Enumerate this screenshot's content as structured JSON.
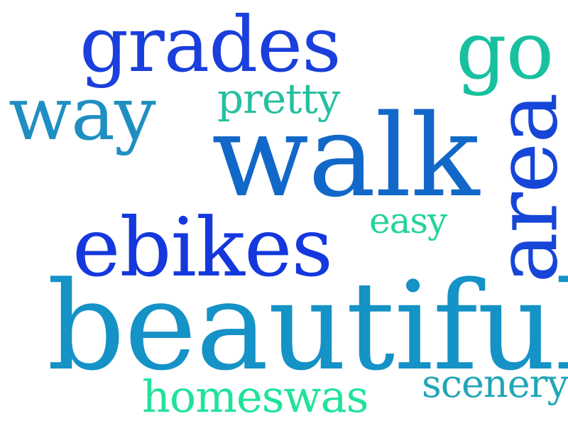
{
  "words": {
    "grades": {
      "text": "grades",
      "color": "#1a3fdc"
    },
    "go": {
      "text": "go",
      "color": "#19c0a0"
    },
    "way": {
      "text": "way",
      "color": "#1f8fc2"
    },
    "pretty": {
      "text": "pretty",
      "color": "#26bfa0"
    },
    "walk": {
      "text": "walk",
      "color": "#1268c8"
    },
    "area": {
      "text": "area",
      "color": "#1646d8"
    },
    "easy": {
      "text": "easy",
      "color": "#23d39a"
    },
    "ebikes": {
      "text": "ebikes",
      "color": "#1438dd"
    },
    "awesome": {
      "text": "awesome",
      "color": "#1f93c0"
    },
    "beautiful": {
      "text": "beautiful",
      "color": "#1592c6"
    },
    "scenery": {
      "text": "scenery",
      "color": "#22a6b7"
    },
    "homeswas": {
      "text": "homeswas",
      "color": "#20e39a"
    }
  }
}
